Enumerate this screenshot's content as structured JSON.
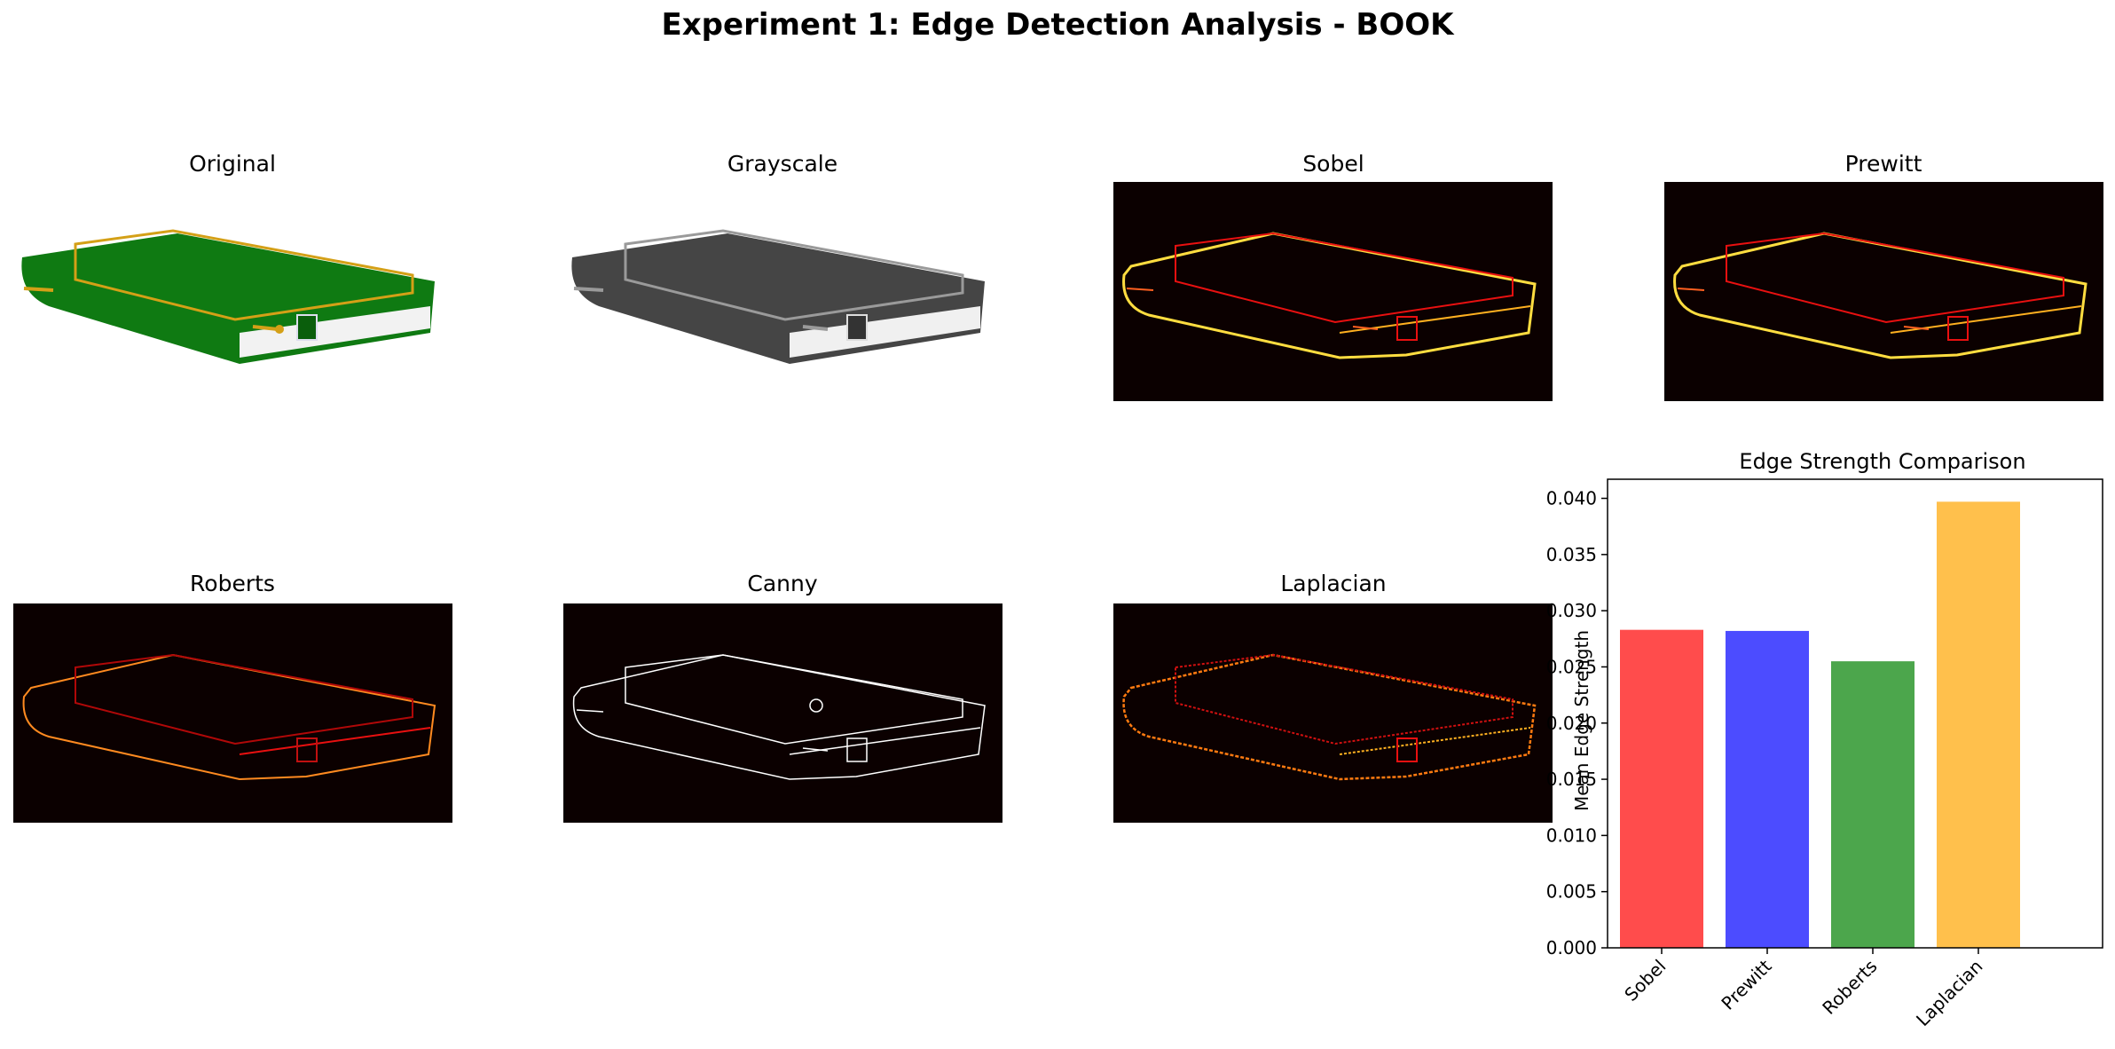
{
  "figure": {
    "title": "Experiment 1: Edge Detection Analysis - BOOK"
  },
  "panels": [
    {
      "title": "Original",
      "kind": "color-image"
    },
    {
      "title": "Grayscale",
      "kind": "gray-image"
    },
    {
      "title": "Sobel",
      "kind": "hot-edges"
    },
    {
      "title": "Prewitt",
      "kind": "hot-edges"
    },
    {
      "title": "Roberts",
      "kind": "hot-edges"
    },
    {
      "title": "Canny",
      "kind": "binary-edges"
    },
    {
      "title": "Laplacian",
      "kind": "hot-edges"
    }
  ],
  "colors": {
    "book_cover": "#0f7a12",
    "book_trim": "#d4a017",
    "hot_dark": "#0b0000",
    "hot_red": "#e81010",
    "hot_yellow": "#ffdd40"
  },
  "chart_data": {
    "type": "bar",
    "title": "Edge Strength Comparison",
    "ylabel": "Mean Edge Strength",
    "xlabel": "",
    "categories": [
      "Sobel",
      "Prewitt",
      "Roberts",
      "Laplacian"
    ],
    "values": [
      0.0283,
      0.0282,
      0.0255,
      0.0397
    ],
    "colors": [
      "#ff4c4c",
      "#4c4cff",
      "#4ca64c",
      "#ffc04c"
    ],
    "ylim": [
      0,
      0.0417
    ],
    "yticks": [
      "0.000",
      "0.005",
      "0.010",
      "0.015",
      "0.020",
      "0.025",
      "0.030",
      "0.035",
      "0.040"
    ],
    "grid": false,
    "legend": "none"
  }
}
